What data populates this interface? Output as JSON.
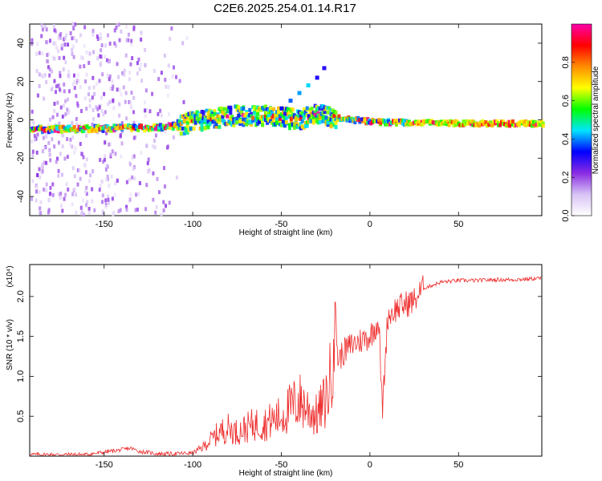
{
  "title": "C2E6.2025.254.01.14.R17",
  "colors": {
    "snr_line": "#ee2c2c",
    "colorbar": [
      "#ffffff",
      "#d8c3f5",
      "#8a2be2",
      "#0000ff",
      "#00e5ff",
      "#00ff00",
      "#ffff00",
      "#ff8c00",
      "#ff0000",
      "#ff00aa"
    ]
  },
  "chart_data": [
    {
      "type": "heatmap",
      "xlabel": "Height of straight line (km)",
      "ylabel": "Frequency (Hz)",
      "xlim": [
        -192,
        97
      ],
      "ylim": [
        -50,
        50
      ],
      "xticks": [
        -150,
        -100,
        -50,
        0,
        50
      ],
      "yticks": [
        -40,
        -20,
        0,
        20,
        40
      ],
      "colorbar": {
        "label": "Normalized spectral amplitude",
        "range": [
          0,
          1
        ],
        "ticks": [
          "0.0",
          "0.2",
          "0.4",
          "0.6",
          "0.8"
        ]
      },
      "ridge": {
        "x": [
          -192,
          -150,
          -120,
          -110,
          -100,
          -80,
          -60,
          -40,
          -30,
          -20,
          -10,
          0,
          20,
          50,
          97
        ],
        "y": [
          -5,
          -4.5,
          -4,
          -3,
          -1,
          2,
          2,
          0,
          3,
          1,
          0,
          -1,
          -1.5,
          -1.8,
          -2
        ]
      },
      "branch": {
        "x": [
          -50,
          -45,
          -40,
          -35,
          -30,
          -26
        ],
        "y": [
          6,
          10,
          14,
          18,
          22,
          27
        ]
      },
      "grid": false
    },
    {
      "type": "line",
      "xlabel": "Height of straight line (km)",
      "ylabel": "SNR (10 * v/v)",
      "multiplier": "(x10⁴)",
      "xlim": [
        -192,
        97
      ],
      "ylim": [
        0,
        2.4
      ],
      "xticks": [
        -150,
        -100,
        -50,
        0,
        50
      ],
      "yticks": [
        "0.5",
        "1.0",
        "1.5",
        "2.0"
      ],
      "series": [
        {
          "x": [
            -192,
            -160,
            -140,
            -135,
            -130,
            -120,
            -110,
            -100,
            -95,
            -90,
            -85,
            -80,
            -75,
            -70,
            -65,
            -60,
            -55,
            -50,
            -45,
            -40,
            -35,
            -30,
            -25,
            -22,
            -20,
            -18,
            -15,
            -10,
            -5,
            0,
            5,
            7,
            10,
            15,
            20,
            25,
            30,
            40,
            50,
            60,
            70,
            80,
            90,
            97
          ],
          "y": [
            0.02,
            0.02,
            0.08,
            0.1,
            0.06,
            0.03,
            0.03,
            0.04,
            0.1,
            0.2,
            0.3,
            0.35,
            0.3,
            0.35,
            0.4,
            0.4,
            0.45,
            0.5,
            0.6,
            0.7,
            0.6,
            0.5,
            0.7,
            1.0,
            2.0,
            1.2,
            1.3,
            1.4,
            1.45,
            1.5,
            1.7,
            0.55,
            1.75,
            1.85,
            1.9,
            1.95,
            2.1,
            2.18,
            2.2,
            2.2,
            2.21,
            2.21,
            2.22,
            2.23
          ]
        }
      ],
      "grid": false
    }
  ]
}
